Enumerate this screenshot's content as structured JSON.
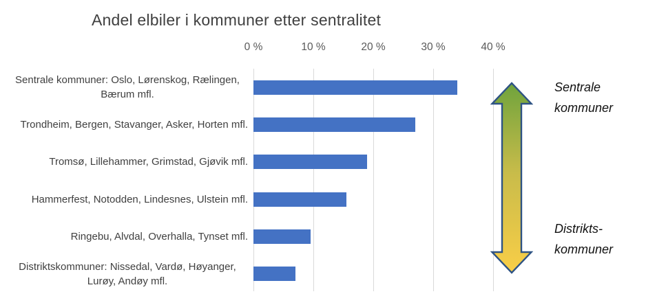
{
  "chart_data": {
    "type": "bar",
    "orientation": "horizontal",
    "title": "Andel elbiler i kommuner etter sentralitet",
    "categories": [
      "Sentrale kommuner: Oslo, Lørenskog, Rælingen, Bærum mfl.",
      "Trondheim, Bergen, Stavanger, Asker, Horten mfl.",
      "Tromsø, Lillehammer, Grimstad, Gjøvik mfl.",
      "Hammerfest, Notodden, Lindesnes, Ulstein mfl.",
      "Ringebu, Alvdal, Overhalla, Tynset mfl.",
      "Distriktskommuner: Nissedal, Vardø, Høyanger, Lurøy, Andøy mfl."
    ],
    "values": [
      34,
      27,
      19,
      15.5,
      9.5,
      7
    ],
    "x_ticks": [
      {
        "label": "0 %",
        "value": 0
      },
      {
        "label": "10 %",
        "value": 10
      },
      {
        "label": "20 %",
        "value": 20
      },
      {
        "label": "30 %",
        "value": 30
      },
      {
        "label": "40 %",
        "value": 40
      }
    ],
    "xlim": [
      0,
      41
    ],
    "grid": true,
    "legend": false,
    "bar_color": "#4472C4",
    "gridline_color": "#D9D9D9"
  },
  "annotations": {
    "side_labels": {
      "top": {
        "line1": "Sentrale",
        "line2": "kommuner"
      },
      "bottom": {
        "line1": "Distrikts-",
        "line2": "kommuner"
      }
    },
    "arrow": {
      "name": "centrality-gradient-arrow",
      "direction": "vertical-double-headed",
      "top_color": "#6FA33C",
      "mid_color": "#C9BC4A",
      "bottom_color": "#F9CE47",
      "outline_color": "#2E5384"
    }
  }
}
